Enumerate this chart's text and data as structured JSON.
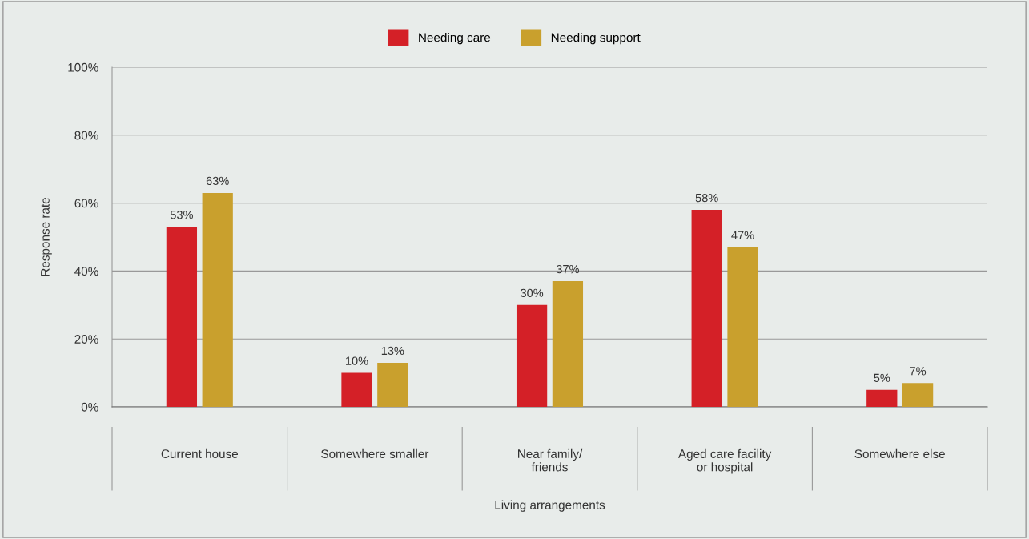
{
  "chart_data": {
    "type": "bar",
    "xlabel": "Living arrangements",
    "ylabel": "Response rate",
    "categories": [
      "Current house",
      "Somewhere smaller",
      "Near family/\nfriends",
      "Aged care facility\nor hospital",
      "Somewhere else"
    ],
    "series": [
      {
        "name": "Needing care",
        "color": "#d42027",
        "values": [
          53,
          10,
          30,
          58,
          5
        ],
        "value_labels": [
          "53%",
          "10%",
          "30%",
          "58%",
          "5%"
        ]
      },
      {
        "name": "Needing support",
        "color": "#c9a02d",
        "values": [
          63,
          13,
          37,
          47,
          7
        ],
        "value_labels": [
          "63%",
          "13%",
          "37%",
          "47%",
          "7%"
        ]
      }
    ],
    "ylim": [
      0,
      100
    ],
    "yticks": [
      {
        "value": 0,
        "label": "0%"
      },
      {
        "value": 20,
        "label": "20%"
      },
      {
        "value": 40,
        "label": "40%"
      },
      {
        "value": 60,
        "label": "60%"
      },
      {
        "value": 80,
        "label": "80%"
      },
      {
        "value": 100,
        "label": "100%"
      }
    ],
    "grid": "y",
    "legend": "top"
  }
}
